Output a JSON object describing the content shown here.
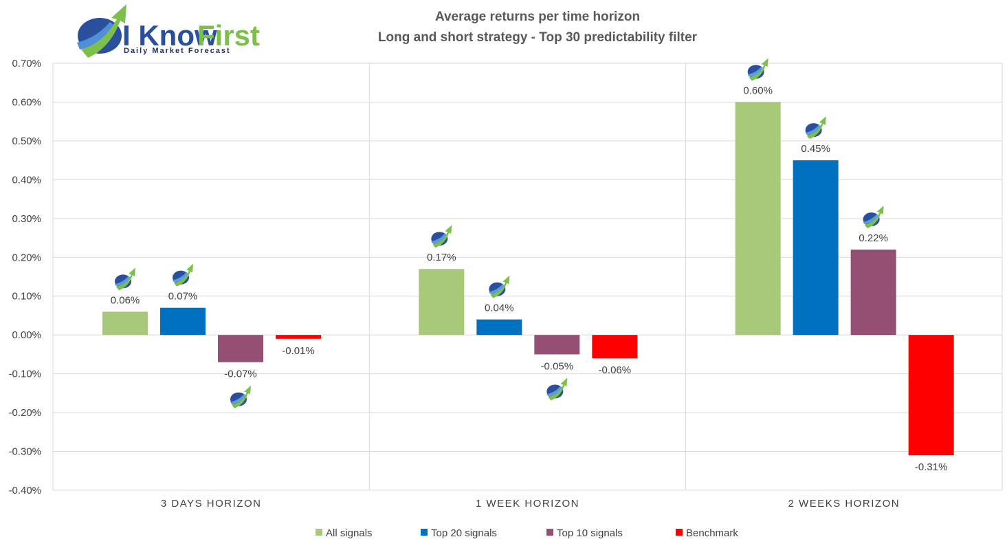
{
  "logo": {
    "brand_part1": "I Know",
    "brand_part2": "First",
    "tagline": "Daily Market Forecast",
    "colors": {
      "blue": "#2a4f9c",
      "green": "#7cc04b"
    }
  },
  "chart_data": {
    "type": "bar",
    "title_line1": "Average returns per time horizon",
    "title_line2": "Long and short strategy - Top 30 predictability filter",
    "xlabel": "",
    "ylabel": "",
    "ylim": [
      -0.4,
      0.7
    ],
    "yticks": [
      0.7,
      0.6,
      0.5,
      0.4,
      0.3,
      0.2,
      0.1,
      0.0,
      -0.1,
      -0.2,
      -0.3,
      -0.4
    ],
    "ytick_labels": [
      "0.70%",
      "0.60%",
      "0.50%",
      "0.40%",
      "0.30%",
      "0.20%",
      "0.10%",
      "0.00%",
      "-0.10%",
      "-0.20%",
      "-0.30%",
      "-0.40%"
    ],
    "categories": [
      "3 DAYS HORIZON",
      "1 WEEK HORIZON",
      "2 WEEKS HORIZON"
    ],
    "grid": true,
    "legend_position": "bottom",
    "series": [
      {
        "name": "All signals",
        "color": "#a9c97a",
        "values": [
          0.06,
          0.17,
          0.6
        ],
        "labels": [
          "0.06%",
          "0.17%",
          "0.60%"
        ],
        "icon": [
          true,
          true,
          true
        ]
      },
      {
        "name": "Top 20 signals",
        "color": "#0070c0",
        "values": [
          0.07,
          0.04,
          0.45
        ],
        "labels": [
          "0.07%",
          "0.04%",
          "0.45%"
        ],
        "icon": [
          true,
          true,
          true
        ]
      },
      {
        "name": "Top 10 signals",
        "color": "#954f72",
        "values": [
          -0.07,
          -0.05,
          0.22
        ],
        "labels": [
          "-0.07%",
          "-0.05%",
          "0.22%"
        ],
        "icon": [
          true,
          true,
          true
        ]
      },
      {
        "name": "Benchmark",
        "color": "#ff0000",
        "values": [
          -0.01,
          -0.06,
          -0.31
        ],
        "labels": [
          "-0.01%",
          "-0.06%",
          "-0.31%"
        ],
        "icon": [
          false,
          false,
          false
        ]
      }
    ]
  }
}
